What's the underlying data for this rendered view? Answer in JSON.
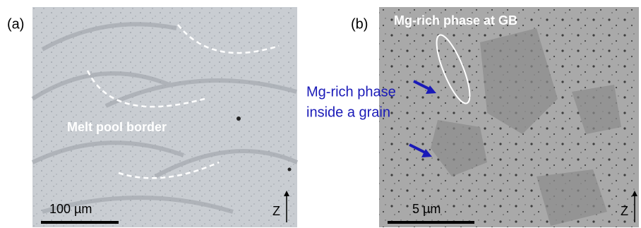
{
  "panels": [
    {
      "label": "(a)",
      "annotation": "Melt pool border",
      "scale_bar": "100 µm",
      "axis": "Z"
    },
    {
      "label": "(b)",
      "annotation": "Mg-rich phase at GB",
      "annotation_blue": [
        "Mg-rich phase",
        "inside a grain"
      ],
      "scale_bar": "5 µm",
      "axis": "Z"
    }
  ]
}
